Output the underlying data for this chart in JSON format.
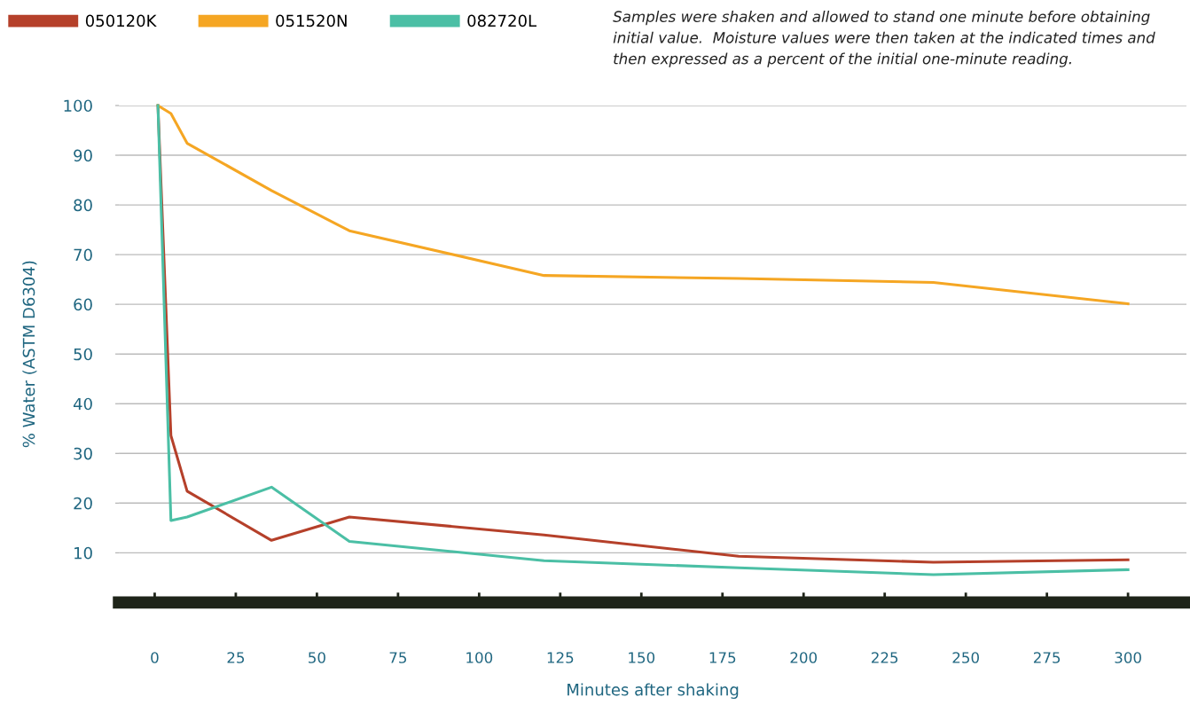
{
  "chart_data": {
    "type": "line",
    "xlabel": "Minutes after shaking",
    "ylabel": "% Water (ASTM D6304)",
    "annotations": [
      "Samples were shaken and allowed to stand one minute before obtaining initial value.  Moisture values were then taken at the indicated times and then expressed as a percent of the initial one-minute reading."
    ],
    "x": [
      1,
      5,
      10,
      36,
      60,
      120,
      180,
      240,
      300
    ],
    "series": [
      {
        "name": "050120K",
        "color": "#b5402a",
        "values": [
          100,
          33.6,
          22.4,
          12.5,
          17.2,
          13.6,
          9.3,
          8.1,
          8.6
        ]
      },
      {
        "name": "051520N",
        "color": "#f5a623",
        "values": [
          100,
          98.4,
          92.4,
          82.9,
          74.8,
          65.8,
          65.2,
          64.4,
          60.1
        ]
      },
      {
        "name": "082720L",
        "color": "#4bbfa5",
        "values": [
          100,
          16.5,
          17.2,
          23.2,
          12.3,
          8.4,
          7,
          5.6,
          6.6
        ]
      }
    ],
    "xlim": [
      -11,
      318
    ],
    "xticks": [
      0,
      25,
      50,
      75,
      100,
      125,
      150,
      175,
      200,
      225,
      250,
      275,
      300
    ],
    "ylim": [
      0,
      100
    ],
    "yticks": [
      10,
      20,
      30,
      40,
      50,
      60,
      70,
      80,
      90,
      100
    ],
    "grid": "y",
    "legend": "top left",
    "marker": "none",
    "line_style": "solid"
  }
}
